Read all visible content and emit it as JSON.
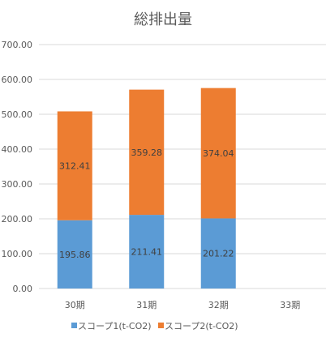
{
  "chart_data": {
    "type": "bar",
    "stacked": true,
    "title": "総排出量",
    "categories": [
      "30期",
      "31期",
      "32期",
      "33期"
    ],
    "series": [
      {
        "name": "スコープ1(t-CO2)",
        "values": [
          195.86,
          211.41,
          201.22,
          null
        ],
        "color": "#5b9bd5"
      },
      {
        "name": "スコープ2(t-CO2)",
        "values": [
          312.41,
          359.28,
          374.04,
          null
        ],
        "color": "#ed7d31"
      }
    ],
    "data_labels": [
      [
        "195.86",
        "211.41",
        "201.22",
        ""
      ],
      [
        "312.41",
        "359.28",
        "374.04",
        ""
      ]
    ],
    "yticks": [
      "0.00",
      "100.00",
      "200.00",
      "300.00",
      "400.00",
      "500.00",
      "600.00",
      "700.00"
    ],
    "ylim": [
      0,
      700
    ],
    "grid": true,
    "legend": "bottom"
  }
}
